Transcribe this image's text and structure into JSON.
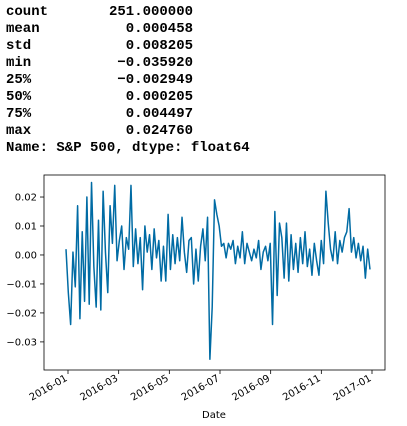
{
  "describe": {
    "rows": [
      [
        "count",
        "251.000000"
      ],
      [
        "mean",
        "0.000458"
      ],
      [
        "std",
        "0.008205"
      ],
      [
        "min",
        "−0.035920"
      ],
      [
        "25%",
        "−0.002949"
      ],
      [
        "50%",
        "0.000205"
      ],
      [
        "75%",
        "0.004497"
      ],
      [
        "max",
        "0.024760"
      ]
    ],
    "footer": "Name: S&P 500, dtype: float64"
  },
  "chart_data": {
    "type": "line",
    "xlabel": "Date",
    "series": [
      {
        "color": "#006ba4",
        "values": [
          0.002,
          -0.013,
          -0.024,
          0.001,
          -0.011,
          0.017,
          -0.022,
          0.008,
          -0.016,
          0.02,
          -0.017,
          0.025,
          -0.004,
          -0.018,
          0.012,
          -0.019,
          0.022,
          0.001,
          -0.013,
          0.017,
          0.004,
          0.024,
          -0.002,
          0.005,
          0.01,
          -0.005,
          0.006,
          0.002,
          0.024,
          -0.004,
          0.009,
          -0.003,
          0.006,
          -0.012,
          0.01,
          0.001,
          0.007,
          -0.005,
          0.009,
          -0.001,
          0.005,
          -0.009,
          0.003,
          -0.009,
          0.014,
          -0.005,
          0.007,
          -0.003,
          0.006,
          -0.002,
          0.013,
          0.001,
          -0.006,
          0.005,
          0.006,
          -0.01,
          0.002,
          -0.009,
          0.003,
          0.009,
          -0.002,
          0.013,
          -0.036,
          -0.018,
          0.019,
          0.014,
          0.01,
          0.003,
          0.004,
          -0.001,
          0.004,
          0.002,
          0.005,
          -0.003,
          0.003,
          -0.001,
          0.008,
          -0.003,
          0.004,
          0.001,
          -0.002,
          0.002,
          -0.001,
          0.005,
          -0.005,
          0.001,
          0.003,
          -0.002,
          0.004,
          -0.024,
          0.015,
          -0.014,
          0.011,
          0.006,
          -0.008,
          0.011,
          -0.009,
          0.007,
          -0.005,
          0.004,
          -0.006,
          0.006,
          -0.003,
          0.008,
          -0.004,
          0.002,
          -0.007,
          0.004,
          -0.002,
          -0.007,
          0.005,
          -0.003,
          0.022,
          0.011,
          0.002,
          -0.002,
          0.008,
          -0.003,
          0.005,
          0.001,
          0.006,
          0.008,
          0.016,
          0.001,
          0.006,
          -0.001,
          0.004,
          -0.002,
          0.003,
          -0.008,
          0.002,
          -0.005
        ]
      }
    ],
    "xticks": [
      "2016-01",
      "2016-03",
      "2016-05",
      "2016-07",
      "2016-09",
      "2016-11",
      "2017-01"
    ],
    "ylim": [
      -0.0397,
      0.0276
    ],
    "yticks": [
      {
        "value": -0.03,
        "label": "−0.03"
      },
      {
        "value": -0.02,
        "label": "−0.02"
      },
      {
        "value": -0.01,
        "label": "−0.01"
      },
      {
        "value": 0,
        "label": "0.00"
      },
      {
        "value": 0.01,
        "label": "0.01"
      },
      {
        "value": 0.02,
        "label": "0.02"
      }
    ]
  }
}
